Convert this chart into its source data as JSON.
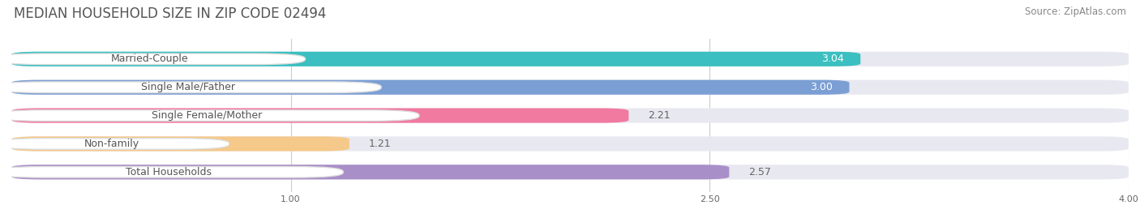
{
  "title": "MEDIAN HOUSEHOLD SIZE IN ZIP CODE 02494",
  "source": "Source: ZipAtlas.com",
  "categories": [
    "Married-Couple",
    "Single Male/Father",
    "Single Female/Mother",
    "Non-family",
    "Total Households"
  ],
  "values": [
    3.04,
    3.0,
    2.21,
    1.21,
    2.57
  ],
  "bar_colors": [
    "#3bbfc0",
    "#7b9fd4",
    "#f07aa0",
    "#f5c98a",
    "#a98fc8"
  ],
  "xlim": [
    0,
    4.0
  ],
  "xticks": [
    1.0,
    2.5,
    4.0
  ],
  "xtick_labels": [
    "1.00",
    "2.50",
    "4.00"
  ],
  "background_color": "#ffffff",
  "bar_bg_color": "#e8e8f0",
  "title_fontsize": 12,
  "source_fontsize": 8.5,
  "label_fontsize": 9,
  "value_fontsize": 9,
  "bar_height": 0.52,
  "bar_label_color_inside": "#ffffff",
  "bar_label_color_outside": "#666666",
  "value_inside_threshold": 2.8
}
